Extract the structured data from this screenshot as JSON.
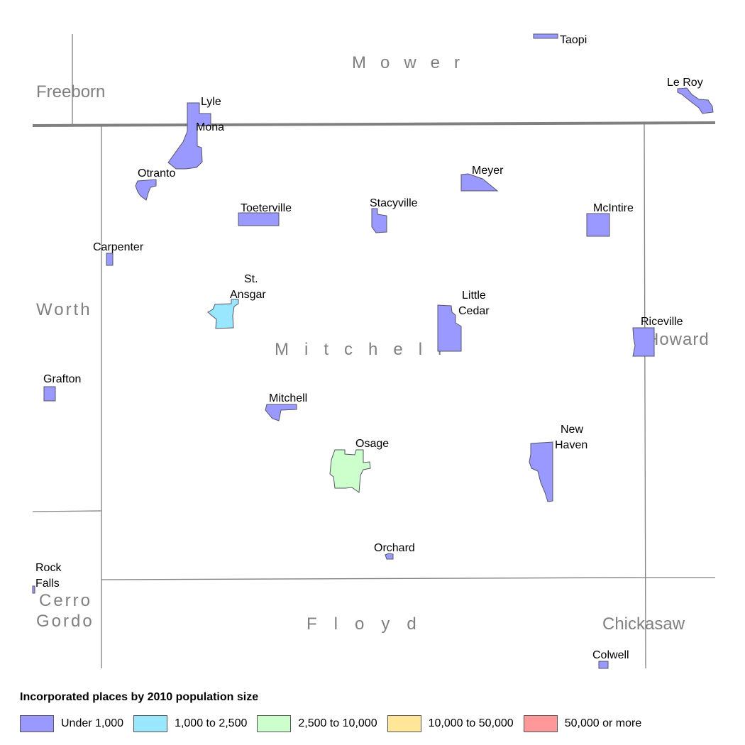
{
  "colors": {
    "under_1000": "#9999ff",
    "p1000_2500": "#99e6ff",
    "p2500_10000": "#ccffcc",
    "p10000_50000": "#ffe699",
    "p50000_plus": "#ff9999"
  },
  "counties": {
    "mower": "Mower",
    "freeborn": "Freeborn",
    "worth": "Worth",
    "mitchell": "Mitchell",
    "howard": "Howard",
    "cerro_gordo_1": "Cerro",
    "cerro_gordo_2": "Gordo",
    "floyd": "Floyd",
    "chickasaw": "Chickasaw"
  },
  "places": {
    "taopi": "Taopi",
    "le_roy": "Le Roy",
    "lyle": "Lyle",
    "mona": "Mona",
    "otranto": "Otranto",
    "meyer": "Meyer",
    "toeterville": "Toeterville",
    "stacyville": "Stacyville",
    "mcintire": "McIntire",
    "carpenter": "Carpenter",
    "st_ansgar_1": "St.",
    "st_ansgar_2": "Ansgar",
    "little_cedar_1": "Little",
    "little_cedar_2": "Cedar",
    "riceville": "Riceville",
    "grafton": "Grafton",
    "mitchell": "Mitchell",
    "osage": "Osage",
    "new_haven_1": "New",
    "new_haven_2": "Haven",
    "orchard": "Orchard",
    "rock_falls_1": "Rock",
    "rock_falls_2": "Falls",
    "colwell": "Colwell"
  },
  "legend": {
    "title": "Incorporated places by 2010 population size",
    "items": [
      {
        "label": "Under 1,000",
        "color": "#9999ff"
      },
      {
        "label": "1,000 to 2,500",
        "color": "#99e6ff"
      },
      {
        "label": "2,500 to 10,000",
        "color": "#ccffcc"
      },
      {
        "label": "10,000 to 50,000",
        "color": "#ffe699"
      },
      {
        "label": "50,000 or more",
        "color": "#ff9999"
      }
    ]
  }
}
